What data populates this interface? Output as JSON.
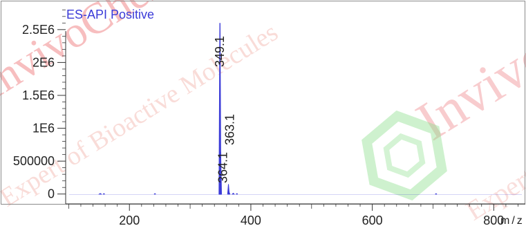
{
  "chart_data": {
    "type": "line",
    "title": "ES-API Positive",
    "xlabel": "m/z",
    "ylabel": "",
    "xlim": [
      95,
      852
    ],
    "ylim": [
      -150000,
      2950000
    ],
    "x_ticks": [
      200,
      400,
      600,
      800
    ],
    "y_ticks": [
      0,
      500000,
      1000000,
      1500000,
      2000000,
      2500000
    ],
    "y_tick_labels": [
      "0",
      "500000",
      "1E6",
      "1.5E6",
      "2E6",
      "2.5E6"
    ],
    "grid": false,
    "series": [
      {
        "peaks": [
          {
            "x": 349.1,
            "y": 2600000
          },
          {
            "x": 350.1,
            "y": 640000
          },
          {
            "x": 363.1,
            "y": 150000
          },
          {
            "x": 364.1,
            "y": 30000
          },
          {
            "x": 371.0,
            "y": 12000
          },
          {
            "x": 377.0,
            "y": 6000
          },
          {
            "x": 152.0,
            "y": 8000
          },
          {
            "x": 158.0,
            "y": 6000
          },
          {
            "x": 242.0,
            "y": 6000
          },
          {
            "x": 705.0,
            "y": 5000
          }
        ]
      }
    ],
    "peak_labels": [
      "349.1",
      "363.1",
      "364.1"
    ],
    "colors": {
      "trace": "#3b3bd8",
      "title": "#3b3bd8",
      "axis": "#333333",
      "text": "#222222"
    }
  },
  "watermark": {
    "texts": [
      "InvivoChem",
      "Expert of Bioactive Molecules",
      "Invivo",
      "Expert of"
    ],
    "colors": {
      "red": "#e8555a",
      "pink": "#f3b9b3",
      "green": "#7fdc7f"
    }
  }
}
